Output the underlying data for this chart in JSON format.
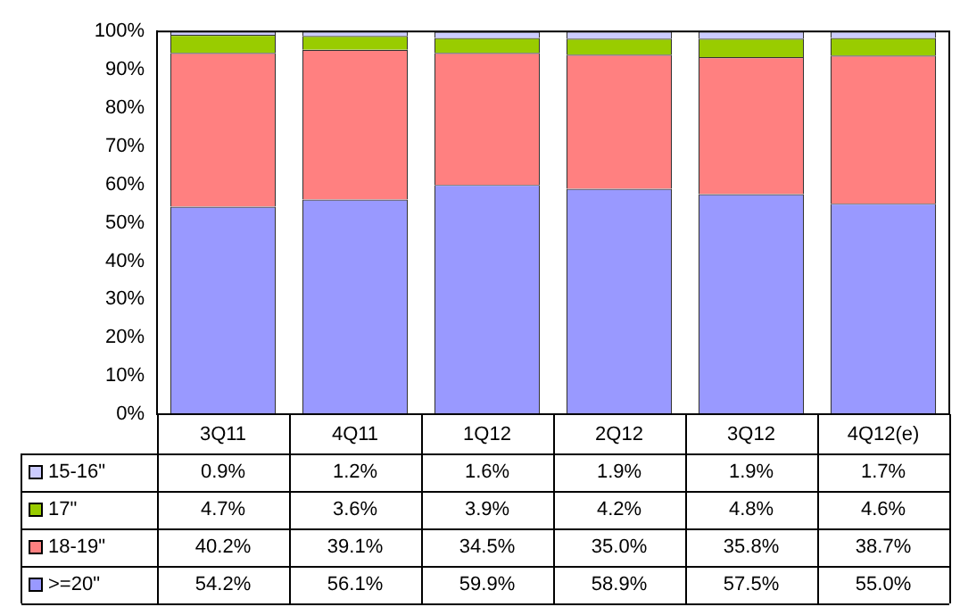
{
  "chart_data": {
    "type": "bar",
    "stacked": true,
    "categories": [
      "3Q11",
      "4Q11",
      "1Q12",
      "2Q12",
      "3Q12",
      "4Q12(e)"
    ],
    "series": [
      {
        "name": ">=20\"",
        "color": "#9999ff",
        "values": [
          54.2,
          56.1,
          59.9,
          58.9,
          57.5,
          55.0
        ],
        "value_labels": [
          "54.2%",
          "56.1%",
          "59.9%",
          "58.9%",
          "57.5%",
          "55.0%"
        ]
      },
      {
        "name": "18-19\"",
        "color": "#ff8080",
        "values": [
          40.2,
          39.1,
          34.5,
          35.0,
          35.8,
          38.7
        ],
        "value_labels": [
          "40.2%",
          "39.1%",
          "34.5%",
          "35.0%",
          "35.8%",
          "38.7%"
        ]
      },
      {
        "name": "17\"",
        "color": "#99cc00",
        "values": [
          4.7,
          3.6,
          3.9,
          4.2,
          4.8,
          4.6
        ],
        "value_labels": [
          "4.7%",
          "3.6%",
          "3.9%",
          "4.2%",
          "4.8%",
          "4.6%"
        ]
      },
      {
        "name": "15-16\"",
        "color": "#ccccff",
        "values": [
          0.9,
          1.2,
          1.6,
          1.9,
          1.9,
          1.7
        ],
        "value_labels": [
          "0.9%",
          "1.2%",
          "1.6%",
          "1.9%",
          "1.9%",
          "1.7%"
        ]
      }
    ],
    "ylim": [
      0,
      100
    ],
    "yticks": [
      {
        "value": 0,
        "label": "0%"
      },
      {
        "value": 10,
        "label": "10%"
      },
      {
        "value": 20,
        "label": "20%"
      },
      {
        "value": 30,
        "label": "30%"
      },
      {
        "value": 40,
        "label": "40%"
      },
      {
        "value": 50,
        "label": "50%"
      },
      {
        "value": 60,
        "label": "60%"
      },
      {
        "value": 70,
        "label": "70%"
      },
      {
        "value": 80,
        "label": "80%"
      },
      {
        "value": 90,
        "label": "90%"
      },
      {
        "value": 100,
        "label": "100%"
      }
    ],
    "grid": false,
    "legend": "bottom"
  }
}
